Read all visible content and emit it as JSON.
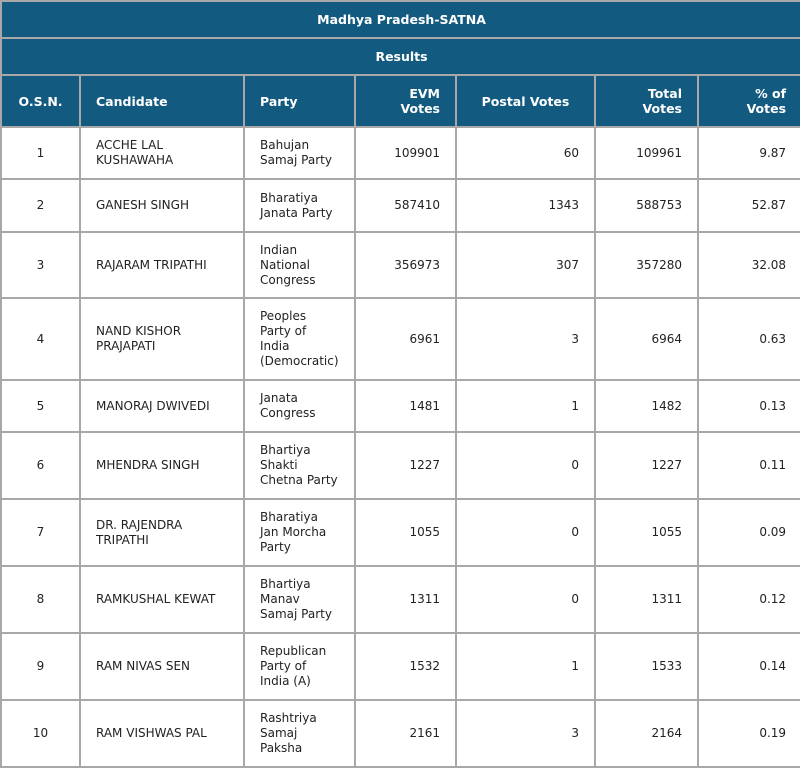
{
  "title": "Madhya Pradesh-SATNA",
  "subtitle": "Results",
  "header_color": "#135a80",
  "columns": [
    "O.S.N.",
    "Candidate",
    "Party",
    "EVM Votes",
    "Postal Votes",
    "Total Votes",
    "% of Votes"
  ],
  "rows": [
    {
      "osn": "1",
      "candidate": "ACCHE LAL KUSHAWAHA",
      "party": "Bahujan Samaj Party",
      "evm": "109901",
      "postal": "60",
      "total": "109961",
      "pct": "9.87"
    },
    {
      "osn": "2",
      "candidate": "GANESH SINGH",
      "party": "Bharatiya Janata Party",
      "evm": "587410",
      "postal": "1343",
      "total": "588753",
      "pct": "52.87"
    },
    {
      "osn": "3",
      "candidate": "RAJARAM TRIPATHI",
      "party": "Indian National Congress",
      "evm": "356973",
      "postal": "307",
      "total": "357280",
      "pct": "32.08"
    },
    {
      "osn": "4",
      "candidate": "NAND KISHOR PRAJAPATI",
      "party": "Peoples Party of India (Democratic)",
      "evm": "6961",
      "postal": "3",
      "total": "6964",
      "pct": "0.63"
    },
    {
      "osn": "5",
      "candidate": "MANORAJ DWIVEDI",
      "party": "Janata Congress",
      "evm": "1481",
      "postal": "1",
      "total": "1482",
      "pct": "0.13"
    },
    {
      "osn": "6",
      "candidate": "MHENDRA SINGH",
      "party": "Bhartiya Shakti Chetna Party",
      "evm": "1227",
      "postal": "0",
      "total": "1227",
      "pct": "0.11"
    },
    {
      "osn": "7",
      "candidate": "DR. RAJENDRA TRIPATHI",
      "party": "Bharatiya Jan Morcha Party",
      "evm": "1055",
      "postal": "0",
      "total": "1055",
      "pct": "0.09"
    },
    {
      "osn": "8",
      "candidate": "RAMKUSHAL KEWAT",
      "party": "Bhartiya Manav Samaj Party",
      "evm": "1311",
      "postal": "0",
      "total": "1311",
      "pct": "0.12"
    },
    {
      "osn": "9",
      "candidate": "RAM NIVAS SEN",
      "party": "Republican Party of India (A)",
      "evm": "1532",
      "postal": "1",
      "total": "1533",
      "pct": "0.14"
    },
    {
      "osn": "10",
      "candidate": "RAM VISHWAS PAL",
      "party": "Rashtriya Samaj Paksha",
      "evm": "2161",
      "postal": "3",
      "total": "2164",
      "pct": "0.19"
    }
  ]
}
